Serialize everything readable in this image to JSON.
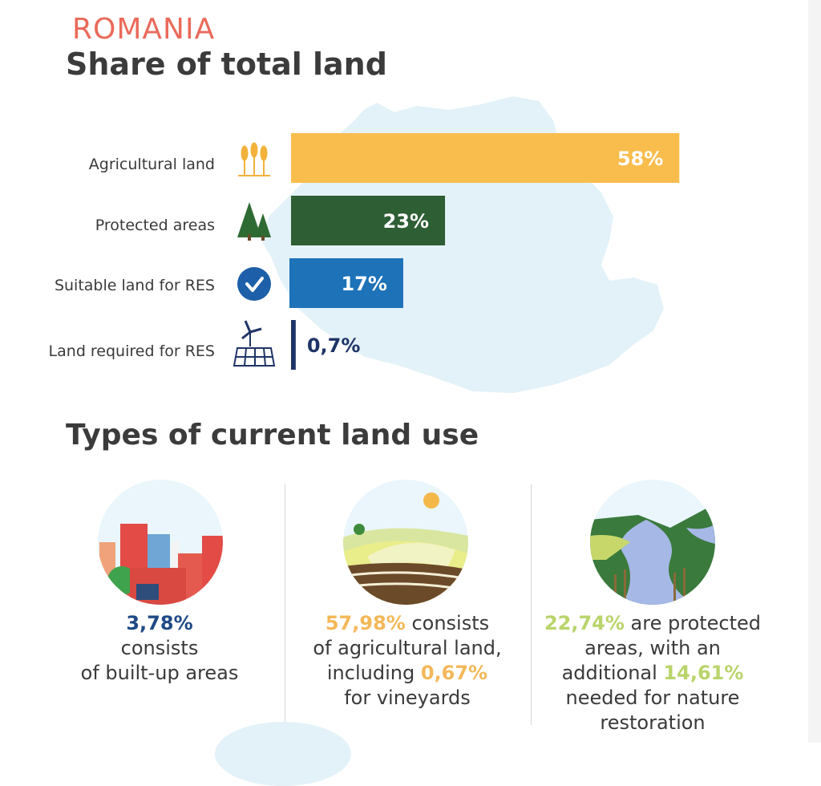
{
  "header": {
    "country": "ROMANIA",
    "title": "Share of total land"
  },
  "chart_data": {
    "type": "bar",
    "orientation": "horizontal",
    "title": "Share of total land",
    "categories": [
      "Agricultural land",
      "Protected areas",
      "Suitable land for RES",
      "Land required for RES"
    ],
    "values": [
      58,
      23,
      17,
      0.7
    ],
    "value_labels": [
      "58%",
      "23%",
      "17%",
      "0,7%"
    ],
    "colors": [
      "#f9bd4d",
      "#2e5e34",
      "#1d72b8",
      "#1f3466"
    ],
    "icons": [
      "wheat-icon",
      "trees-icon",
      "checkmark-icon",
      "wind-solar-icon"
    ],
    "xlim": [
      0,
      100
    ],
    "grid": false
  },
  "land_use": {
    "title": "Types of current land use",
    "items": [
      {
        "icon": "city-icon",
        "highlight": "3,78%",
        "line1": " consists",
        "line2": "of built-up areas"
      },
      {
        "icon": "farmland-icon",
        "highlight": "57,98%",
        "text1": " consists",
        "text2": "of agricultural land,",
        "text3": "including ",
        "highlight2": "0,67%",
        "text4": "for vineyards"
      },
      {
        "icon": "river-icon",
        "highlight": "22,74%",
        "text1": " are protected",
        "text2": "areas, with an",
        "text3": "additional ",
        "highlight2": "14,61%",
        "text4": "needed for nature",
        "text5": "restoration"
      }
    ]
  },
  "colors": {
    "accent_red": "#ea6a5a",
    "blue": "#1f4a86",
    "yellow": "#f4b85a",
    "green": "#b9d46a",
    "map": "#e3f2f8"
  }
}
